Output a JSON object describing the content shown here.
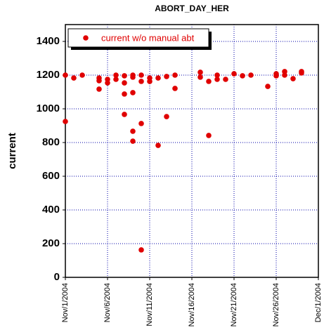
{
  "chart_data": {
    "type": "scatter",
    "title": "ABORT_DAY_HER",
    "ylabel": "current",
    "legend": "upper left",
    "grid": true,
    "series": [
      {
        "name": "current w/o manual abt",
        "color": "#e00000",
        "x": [
          0,
          0,
          1,
          2,
          4,
          4,
          4,
          5,
          5,
          6,
          6,
          7,
          7,
          7,
          7,
          8,
          8,
          8,
          8,
          8,
          9,
          9,
          9,
          9,
          10,
          10,
          11,
          11,
          12,
          12,
          13,
          13,
          16,
          16,
          17,
          17,
          18,
          18,
          19,
          20,
          21,
          22,
          24,
          25,
          25,
          26,
          26,
          27,
          28,
          28
        ],
        "values": [
          1200,
          925,
          1183,
          1200,
          1183,
          1117,
          1167,
          1175,
          1154,
          1200,
          1175,
          1196,
          1154,
          1088,
          967,
          1200,
          1188,
          1096,
          867,
          808,
          1200,
          1163,
          913,
          163,
          1183,
          1163,
          1183,
          783,
          1192,
          954,
          1200,
          1121,
          1217,
          1188,
          1163,
          842,
          1200,
          1175,
          1175,
          1208,
          1196,
          1200,
          1133,
          1208,
          1196,
          1221,
          1200,
          1179,
          1221,
          1213
        ]
      }
    ],
    "xlim": [
      0,
      30
    ],
    "xticks": [
      {
        "value": 0,
        "label": "Nov/1/2004"
      },
      {
        "value": 5,
        "label": "Nov/6/2004"
      },
      {
        "value": 10,
        "label": "Nov/11/2004"
      },
      {
        "value": 15,
        "label": "Nov/16/2004"
      },
      {
        "value": 20,
        "label": "Nov/21/2004"
      },
      {
        "value": 25,
        "label": "Nov/26/2004"
      },
      {
        "value": 30,
        "label": "Dec/1/2004"
      }
    ],
    "ylim": [
      0,
      1500
    ],
    "yticks": [
      0,
      200,
      400,
      600,
      800,
      1000,
      1200,
      1400
    ]
  }
}
